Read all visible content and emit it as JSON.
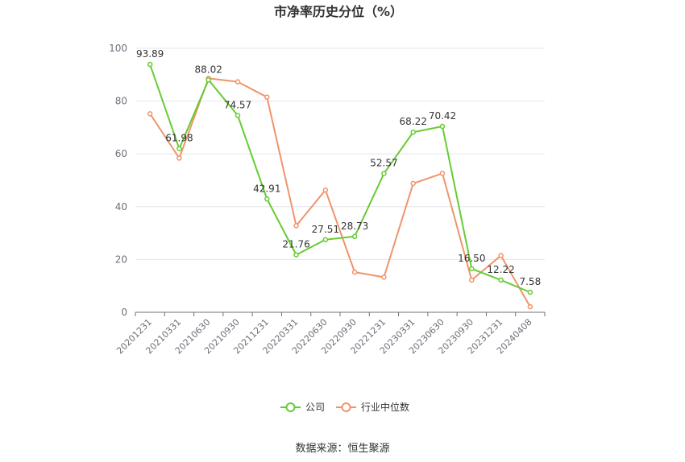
{
  "chart_data": {
    "type": "line",
    "title": "市净率历史分位（%）",
    "categories": [
      "20201231",
      "20210331",
      "20210630",
      "20210930",
      "20211231",
      "20220331",
      "20220630",
      "20220930",
      "20221231",
      "20230331",
      "20230630",
      "20230930",
      "20231231",
      "20240408"
    ],
    "series": [
      {
        "name": "公司",
        "color": "#66cc33",
        "values": [
          93.89,
          61.98,
          88.02,
          74.57,
          42.91,
          21.76,
          27.51,
          28.73,
          52.57,
          68.22,
          70.42,
          16.5,
          12.22,
          7.58
        ],
        "labels": [
          "93.89",
          "61.98",
          "88.02",
          "74.57",
          "42.91",
          "21.76",
          "27.51",
          "28.73",
          "52.57",
          "68.22",
          "70.42",
          "16.50",
          "12.22",
          "7.58"
        ]
      },
      {
        "name": "行业中位数",
        "color": "#f0946a",
        "values": [
          75.2,
          58.4,
          88.6,
          87.3,
          81.5,
          32.8,
          46.3,
          15.2,
          13.3,
          48.8,
          52.6,
          12.2,
          21.5,
          2.1
        ]
      }
    ],
    "ylim": [
      0,
      100
    ],
    "yticks": [
      "0",
      "20",
      "40",
      "60",
      "80",
      "100"
    ],
    "grid": true,
    "legend_position": "bottom"
  },
  "source_text": "数据来源：恒生聚源"
}
